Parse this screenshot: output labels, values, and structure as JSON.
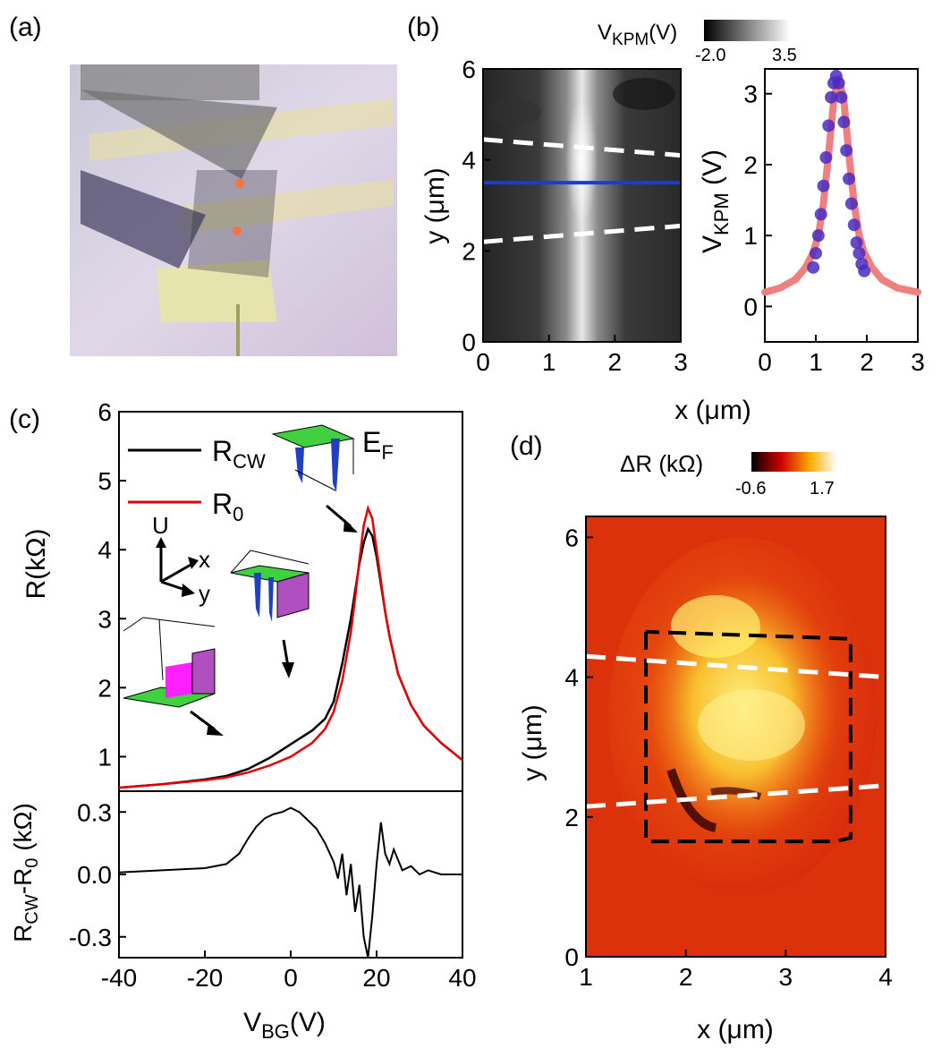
{
  "panels": {
    "a": {
      "label": "(a)"
    },
    "b": {
      "label": "(b)"
    },
    "c": {
      "label": "(c)"
    },
    "d": {
      "label": "(d)"
    }
  },
  "colors": {
    "blue_line": "#1a3adf",
    "fit_curve": "#f08080",
    "data_points": "#4a2bbf",
    "r_cw": "#000000",
    "r0": "#e00000",
    "dashed_white": "#ffffff",
    "dashed_black": "#000000"
  },
  "chart_data": [
    {
      "id": "b-map",
      "type": "heatmap",
      "xlabel": "x (μm)",
      "ylabel": "y (μm)",
      "xlim": [
        0,
        3
      ],
      "ylim": [
        0,
        6
      ],
      "xticks": [
        "0",
        "1",
        "2",
        "3"
      ],
      "yticks": [
        "0",
        "2",
        "4",
        "6"
      ],
      "colorbar": {
        "label": "V",
        "label_sub": "KPM",
        "label_unit": "(V)",
        "min": "-2.0",
        "max": "3.5"
      },
      "cut_line_y": 3.5,
      "dashed_lines": [
        {
          "x": [
            0,
            3
          ],
          "y": [
            4.45,
            4.1
          ]
        },
        {
          "x": [
            0,
            3
          ],
          "y": [
            2.2,
            2.55
          ]
        }
      ]
    },
    {
      "id": "b-profile",
      "type": "scatter",
      "xlabel": "x (μm)",
      "ylabel": "V",
      "ylabel_sub": "KPM",
      "ylabel_unit": " (V)",
      "xlim": [
        0,
        3
      ],
      "ylim": [
        -0.5,
        3.35
      ],
      "xticks": [
        "0",
        "1",
        "2",
        "3"
      ],
      "yticks": [
        "0",
        "1",
        "2",
        "3"
      ],
      "series": [
        {
          "name": "data",
          "x": [
            0.95,
            1.0,
            1.05,
            1.1,
            1.15,
            1.2,
            1.25,
            1.3,
            1.35,
            1.4,
            1.45,
            1.5,
            1.55,
            1.6,
            1.65,
            1.7,
            1.75,
            1.8,
            1.85,
            1.9,
            1.95
          ],
          "y": [
            0.55,
            0.75,
            1.0,
            1.3,
            1.7,
            2.1,
            2.55,
            2.95,
            3.15,
            3.25,
            3.15,
            2.95,
            2.6,
            2.2,
            1.8,
            1.45,
            1.15,
            0.9,
            0.75,
            0.6,
            0.5
          ]
        },
        {
          "name": "fit",
          "x": [
            0.0,
            0.3,
            0.6,
            0.8,
            0.95,
            1.05,
            1.15,
            1.25,
            1.35,
            1.45,
            1.55,
            1.65,
            1.75,
            1.85,
            1.95,
            2.1,
            2.3,
            2.6,
            3.0
          ],
          "y": [
            0.2,
            0.26,
            0.38,
            0.55,
            0.76,
            1.0,
            1.45,
            2.15,
            2.9,
            3.25,
            2.9,
            2.15,
            1.45,
            1.0,
            0.76,
            0.55,
            0.38,
            0.26,
            0.2
          ]
        }
      ]
    },
    {
      "id": "c-top",
      "type": "line",
      "ylabel": "R(kΩ)",
      "xlim": [
        -40,
        40
      ],
      "ylim": [
        0.5,
        6
      ],
      "yticks": [
        "1",
        "2",
        "3",
        "4",
        "5",
        "6"
      ],
      "series": [
        {
          "name": "R",
          "name_sub": "CW",
          "x": [
            -40,
            -30,
            -20,
            -15,
            -10,
            -5,
            0,
            5,
            8,
            10,
            12,
            14,
            15,
            16,
            17,
            18,
            19,
            20,
            21,
            22,
            23,
            25,
            28,
            31,
            35,
            40
          ],
          "y": [
            0.55,
            0.6,
            0.67,
            0.72,
            0.82,
            0.98,
            1.18,
            1.38,
            1.55,
            1.8,
            2.35,
            3.0,
            3.4,
            3.8,
            4.1,
            4.3,
            4.2,
            3.9,
            3.5,
            3.1,
            2.75,
            2.2,
            1.75,
            1.45,
            1.2,
            0.95
          ]
        },
        {
          "name": "R",
          "name_sub": "0",
          "x": [
            -40,
            -30,
            -20,
            -15,
            -10,
            -5,
            0,
            5,
            8,
            10,
            12,
            14,
            15,
            16,
            17,
            18,
            19,
            20,
            21,
            22,
            23,
            25,
            28,
            31,
            35,
            40
          ],
          "y": [
            0.55,
            0.6,
            0.66,
            0.7,
            0.77,
            0.87,
            1.0,
            1.2,
            1.4,
            1.65,
            2.1,
            2.8,
            3.3,
            3.85,
            4.35,
            4.6,
            4.45,
            4.0,
            3.55,
            3.1,
            2.75,
            2.2,
            1.75,
            1.45,
            1.2,
            0.95
          ]
        }
      ],
      "annotations": [
        "U",
        "x",
        "y",
        "E",
        "F"
      ]
    },
    {
      "id": "c-bottom",
      "type": "line",
      "xlabel": "V",
      "xlabel_sub": "BG",
      "xlabel_unit": "(V)",
      "ylabel": "R",
      "ylabel_sub1": "CW",
      "ylabel_mid": "-R",
      "ylabel_sub2": "0",
      "ylabel_unit": " (kΩ)",
      "xlim": [
        -40,
        40
      ],
      "ylim": [
        -0.4,
        0.4
      ],
      "xticks": [
        "-40",
        "-20",
        "0",
        "20",
        "40"
      ],
      "yticks": [
        "-0.3",
        "0.0",
        "0.3"
      ],
      "series": [
        {
          "name": "R_CW - R_0",
          "x": [
            -40,
            -30,
            -20,
            -15,
            -12,
            -10,
            -8,
            -6,
            -4,
            -2,
            0,
            2,
            4,
            6,
            8,
            10,
            11,
            12,
            13,
            14,
            15,
            16,
            17,
            18,
            19,
            20,
            21,
            22,
            23,
            24,
            26,
            28,
            30,
            32,
            35,
            40
          ],
          "y": [
            0.01,
            0.02,
            0.03,
            0.05,
            0.1,
            0.17,
            0.23,
            0.27,
            0.29,
            0.3,
            0.32,
            0.3,
            0.26,
            0.22,
            0.15,
            0.06,
            -0.02,
            0.1,
            -0.1,
            0.05,
            -0.18,
            -0.05,
            -0.3,
            -0.4,
            -0.2,
            0.05,
            0.25,
            0.1,
            0.05,
            0.12,
            0.02,
            0.04,
            0.0,
            0.02,
            0.0,
            0.0
          ]
        }
      ]
    },
    {
      "id": "d-map",
      "type": "heatmap",
      "xlabel": "x (μm)",
      "ylabel": "y (μm)",
      "xlim": [
        1,
        4
      ],
      "ylim": [
        0,
        6.3
      ],
      "xticks": [
        "1",
        "2",
        "3",
        "4"
      ],
      "yticks": [
        "0",
        "2",
        "4",
        "6"
      ],
      "colorbar": {
        "label": "ΔR (kΩ)",
        "min": "-0.6",
        "max": "1.7"
      },
      "dashed_lines": [
        {
          "x": [
            1,
            4
          ],
          "y": [
            4.3,
            4.0
          ]
        },
        {
          "x": [
            1,
            4
          ],
          "y": [
            2.15,
            2.45
          ]
        }
      ],
      "outline_box": {
        "x": [
          1.6,
          1.6,
          3.5,
          3.65,
          3.65,
          1.6
        ],
        "y": [
          4.65,
          1.65,
          1.65,
          1.7,
          4.55,
          4.65
        ]
      }
    }
  ]
}
